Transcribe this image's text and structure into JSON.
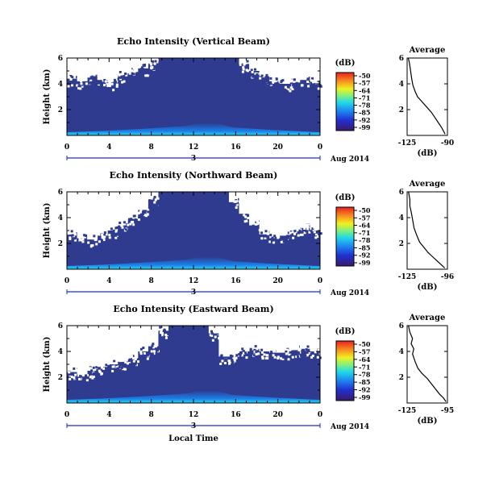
{
  "chart_data": [
    {
      "type": "heatmap",
      "title": "Echo Intensity (Vertical Beam)",
      "ylabel": "Height (km)",
      "x_ticks": [
        "0",
        "4",
        "8",
        "12",
        "16",
        "20",
        "0"
      ],
      "y_ticks": [
        "6",
        "4",
        "2"
      ],
      "xlim": [
        0,
        24
      ],
      "ylim": [
        0,
        6
      ],
      "day_label": "3",
      "date_label": "Aug 2014",
      "colorbar": {
        "title": "(dB)",
        "ticks": [
          "-50",
          "-57",
          "-64",
          "-71",
          "-78",
          "-85",
          "-92",
          "-99"
        ],
        "range": [
          -99,
          -50
        ]
      },
      "missing_top_km": [
        4.4,
        4.2,
        4.6,
        4.3,
        4.1,
        4.7,
        4.9,
        5.2,
        5.6,
        6.0,
        6.0,
        6.0,
        6.0,
        6.0,
        6.0,
        6.0,
        6.0,
        5.5,
        5.0,
        4.6,
        4.2,
        4.0,
        4.1,
        4.3,
        4.2
      ],
      "profile": {
        "title": "Average",
        "xlabel": "(dB)",
        "x_ticks": [
          "-125",
          "-90"
        ],
        "y_ticks": [
          "6",
          "4",
          "2"
        ],
        "xlim": [
          -125,
          -90
        ],
        "ylim": [
          0,
          6
        ],
        "x": [
          -124,
          -123,
          -122,
          -121,
          -120,
          -118,
          -116,
          -112,
          -108,
          -104,
          -101,
          -98,
          -95,
          -92
        ],
        "y": [
          6.0,
          5.6,
          5.0,
          4.4,
          3.9,
          3.4,
          3.0,
          2.6,
          2.2,
          1.8,
          1.4,
          1.0,
          0.6,
          0.1
        ]
      }
    },
    {
      "type": "heatmap",
      "title": "Echo Intensity (Northward Beam)",
      "ylabel": "Height (km)",
      "x_ticks": [
        "0",
        "4",
        "8",
        "12",
        "16",
        "20",
        "0"
      ],
      "y_ticks": [
        "6",
        "4",
        "2"
      ],
      "xlim": [
        0,
        24
      ],
      "ylim": [
        0,
        6
      ],
      "day_label": "3",
      "date_label": "Aug 2014",
      "colorbar": {
        "title": "(dB)",
        "ticks": [
          "-50",
          "-57",
          "-64",
          "-71",
          "-78",
          "-85",
          "-92",
          "-99"
        ],
        "range": [
          -99,
          -50
        ]
      },
      "missing_top_km": [
        2.7,
        2.4,
        2.3,
        2.6,
        3.0,
        3.4,
        3.9,
        4.6,
        5.4,
        6.0,
        6.0,
        6.0,
        6.0,
        6.0,
        6.0,
        6.0,
        5.2,
        4.3,
        3.4,
        2.7,
        2.4,
        2.6,
        3.0,
        3.2,
        3.0
      ],
      "profile": {
        "title": "Average",
        "xlabel": "(dB)",
        "x_ticks": [
          "-125",
          "-96"
        ],
        "y_ticks": [
          "6",
          "4",
          "2"
        ],
        "xlim": [
          -125,
          -96
        ],
        "ylim": [
          0,
          6
        ],
        "x": [
          -124,
          -123,
          -123,
          -122,
          -121,
          -120,
          -118,
          -116,
          -113,
          -110,
          -107,
          -104,
          -101,
          -98
        ],
        "y": [
          6.0,
          5.4,
          4.9,
          4.4,
          3.8,
          3.2,
          2.6,
          2.1,
          1.7,
          1.3,
          1.0,
          0.7,
          0.4,
          0.1
        ]
      }
    },
    {
      "type": "heatmap",
      "title": "Echo Intensity (Eastward Beam)",
      "ylabel": "Height (km)",
      "x_ticks": [
        "0",
        "4",
        "8",
        "12",
        "16",
        "20",
        "0"
      ],
      "y_ticks": [
        "6",
        "4",
        "2"
      ],
      "xlim": [
        0,
        24
      ],
      "ylim": [
        0,
        6
      ],
      "day_label": "3",
      "date_label": "Aug 2014",
      "xlabel": "Local Time",
      "colorbar": {
        "title": "(dB)",
        "ticks": [
          "-50",
          "-57",
          "-64",
          "-71",
          "-78",
          "-85",
          "-92",
          "-99"
        ],
        "range": [
          -99,
          -50
        ]
      },
      "missing_top_km": [
        2.4,
        2.2,
        2.5,
        2.8,
        3.0,
        3.2,
        3.5,
        4.0,
        4.4,
        5.6,
        6.0,
        6.0,
        6.0,
        6.0,
        5.4,
        3.6,
        3.6,
        4.0,
        4.2,
        4.0,
        3.9,
        3.9,
        4.1,
        4.2,
        4.0
      ],
      "profile": {
        "title": "Average",
        "xlabel": "(dB)",
        "x_ticks": [
          "-125",
          "-95"
        ],
        "y_ticks": [
          "6",
          "4",
          "2"
        ],
        "xlim": [
          -125,
          -95
        ],
        "ylim": [
          0,
          6
        ],
        "x": [
          -124,
          -123,
          -121,
          -122,
          -120,
          -121,
          -119,
          -117,
          -114,
          -110,
          -107,
          -104,
          -101,
          -98,
          -96
        ],
        "y": [
          6.0,
          5.5,
          5.0,
          4.6,
          4.2,
          3.8,
          3.2,
          2.7,
          2.3,
          1.9,
          1.5,
          1.1,
          0.7,
          0.4,
          0.1
        ]
      }
    }
  ],
  "colors": {
    "background": "#2e3b8f",
    "missing": "#ffffff",
    "axis": "#000000",
    "day_bar": "#1f2bd6"
  }
}
